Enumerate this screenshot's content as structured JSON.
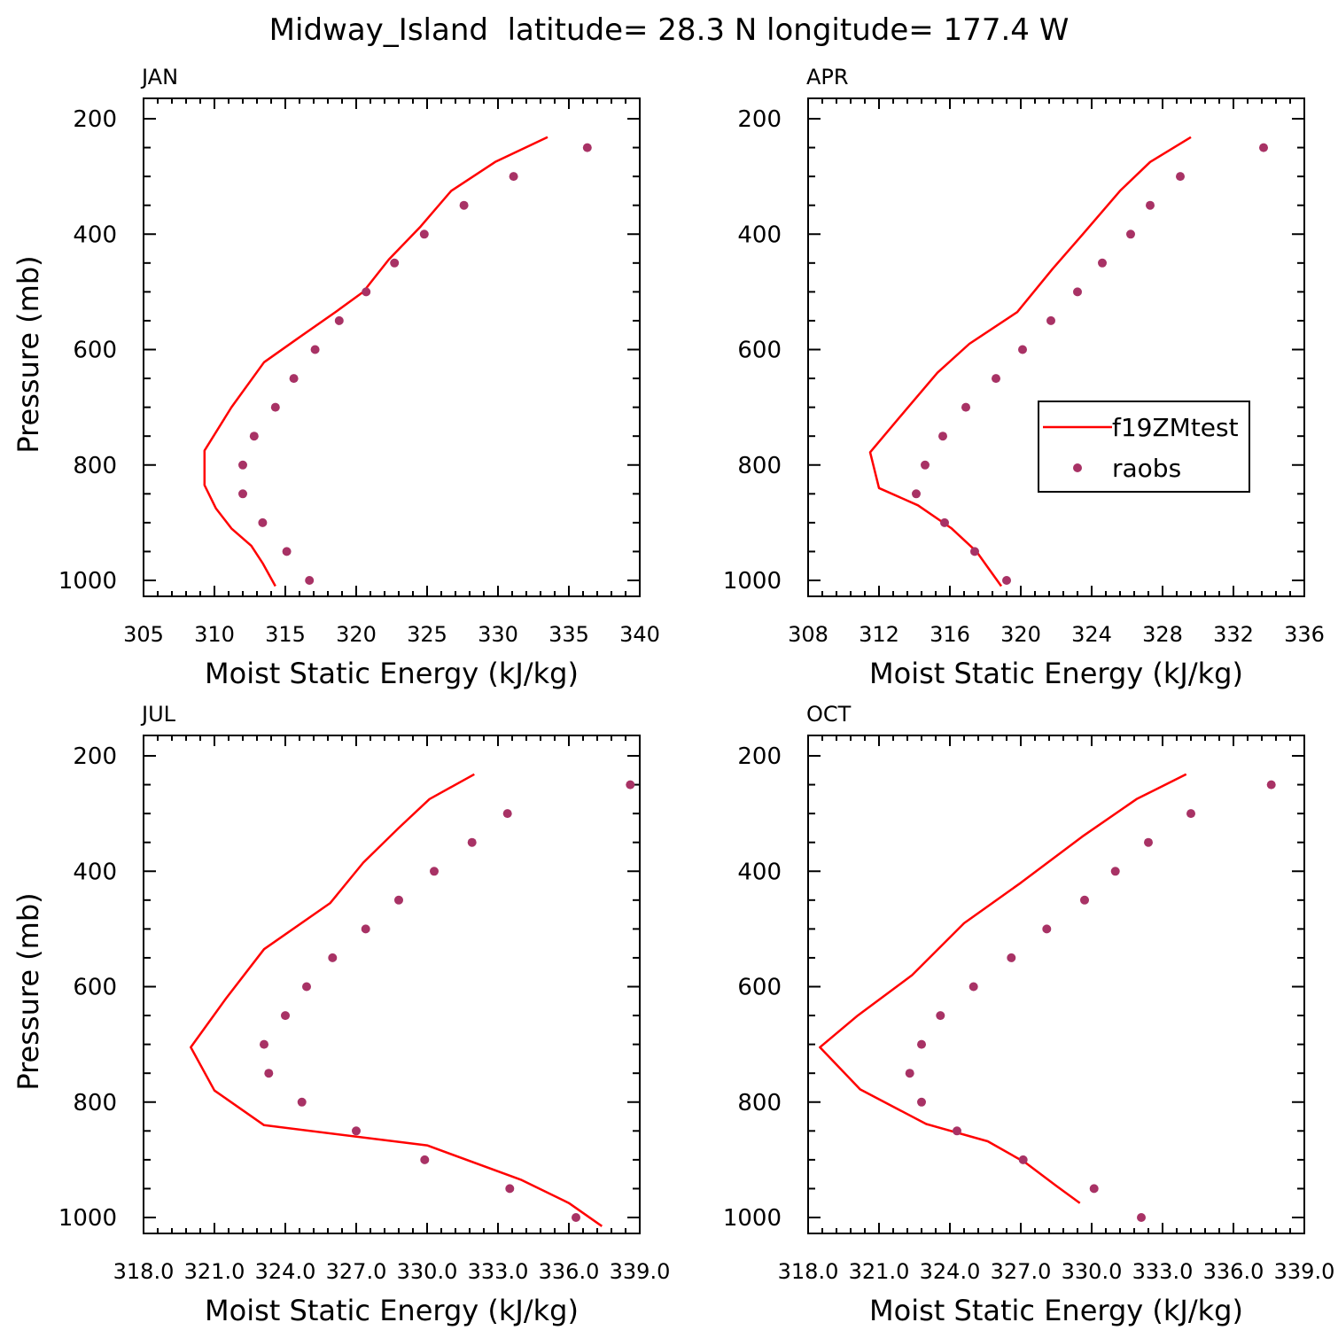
{
  "title": "Midway_Island  latitude= 28.3 N longitude= 177.4 W",
  "colors": {
    "model": "#ff0000",
    "obs": "#a83265",
    "axis": "#000000"
  },
  "legend": {
    "model_label": "f19ZMtest",
    "obs_label": "raobs",
    "panel": "APR"
  },
  "chart_data": [
    {
      "type": "line",
      "panel": "JAN",
      "xlabel": "Moist Static Energy (kJ/kg)",
      "ylabel": "Pressure (mb)",
      "xlim": [
        305,
        340
      ],
      "ylim": [
        200,
        1000
      ],
      "xticks": [
        "305",
        "310",
        "315",
        "320",
        "325",
        "330",
        "335",
        "340"
      ],
      "yticks": [
        "200",
        "400",
        "600",
        "800",
        "1000"
      ],
      "series": [
        {
          "name": "f19ZMtest",
          "style": "line",
          "x": [
            333.5,
            329.8,
            326.7,
            324.5,
            322.3,
            320.5,
            318.6,
            315.8,
            313.5,
            311.2,
            309.3,
            309.3,
            310.1,
            311.2,
            312.6,
            313.4,
            314.3
          ],
          "y": [
            232,
            275,
            325,
            388,
            444,
            500,
            534,
            582,
            622,
            700,
            775,
            835,
            875,
            910,
            940,
            970,
            1010
          ]
        },
        {
          "name": "raobs",
          "style": "marker",
          "x": [
            336.3,
            331.1,
            327.6,
            324.8,
            322.7,
            320.7,
            318.8,
            317.1,
            315.6,
            314.3,
            312.8,
            312.0,
            312.0,
            313.4,
            315.1,
            316.7
          ],
          "y": [
            250,
            300,
            350,
            400,
            450,
            500,
            550,
            600,
            650,
            700,
            750,
            800,
            850,
            900,
            950,
            1000
          ]
        }
      ]
    },
    {
      "type": "line",
      "panel": "APR",
      "xlabel": "Moist Static Energy (kJ/kg)",
      "ylabel": "",
      "xlim": [
        308,
        336
      ],
      "ylim": [
        200,
        1000
      ],
      "xticks": [
        "308",
        "312",
        "316",
        "320",
        "324",
        "328",
        "332",
        "336"
      ],
      "yticks": [
        "200",
        "400",
        "600",
        "800",
        "1000"
      ],
      "series": [
        {
          "name": "f19ZMtest",
          "style": "line",
          "x": [
            329.6,
            327.3,
            325.6,
            323.5,
            321.8,
            319.8,
            317.1,
            315.3,
            313.5,
            311.5,
            312.0,
            314.2,
            316.1,
            317.5,
            318.2,
            318.9
          ],
          "y": [
            232,
            275,
            325,
            400,
            460,
            535,
            590,
            640,
            705,
            778,
            840,
            870,
            910,
            950,
            980,
            1010
          ]
        },
        {
          "name": "raobs",
          "style": "marker",
          "x": [
            333.7,
            329.0,
            327.3,
            326.2,
            324.6,
            323.2,
            321.7,
            320.1,
            318.6,
            316.9,
            315.6,
            314.6,
            314.1,
            315.7,
            317.4,
            319.2
          ],
          "y": [
            250,
            300,
            350,
            400,
            450,
            500,
            550,
            600,
            650,
            700,
            750,
            800,
            850,
            900,
            950,
            1000
          ]
        }
      ]
    },
    {
      "type": "line",
      "panel": "JUL",
      "xlabel": "Moist Static Energy (kJ/kg)",
      "ylabel": "Pressure (mb)",
      "xlim": [
        318.0,
        339.0
      ],
      "ylim": [
        200,
        1000
      ],
      "xticks": [
        "318.0",
        "321.0",
        "324.0",
        "327.0",
        "330.0",
        "333.0",
        "336.0",
        "339.0"
      ],
      "yticks": [
        "200",
        "400",
        "600",
        "800",
        "1000"
      ],
      "series": [
        {
          "name": "f19ZMtest",
          "style": "line",
          "x": [
            332.0,
            330.1,
            328.8,
            327.3,
            325.9,
            323.1,
            321.5,
            320.0,
            321.0,
            323.1,
            330.0,
            334.0,
            336.0,
            337.4
          ],
          "y": [
            232,
            275,
            325,
            385,
            455,
            535,
            620,
            705,
            780,
            840,
            875,
            935,
            975,
            1015
          ]
        },
        {
          "name": "raobs",
          "style": "marker",
          "x": [
            338.6,
            333.4,
            331.9,
            330.3,
            328.8,
            327.4,
            326.0,
            324.9,
            324.0,
            323.1,
            323.3,
            324.7,
            327.0,
            329.9,
            333.5,
            336.3
          ],
          "y": [
            250,
            300,
            350,
            400,
            450,
            500,
            550,
            600,
            650,
            700,
            750,
            800,
            850,
            900,
            950,
            1000
          ]
        }
      ]
    },
    {
      "type": "line",
      "panel": "OCT",
      "xlabel": "Moist Static Energy (kJ/kg)",
      "ylabel": "",
      "xlim": [
        318.0,
        339.0
      ],
      "ylim": [
        200,
        1000
      ],
      "xticks": [
        "318.0",
        "321.0",
        "324.0",
        "327.0",
        "330.0",
        "333.0",
        "336.0",
        "339.0"
      ],
      "yticks": [
        "200",
        "400",
        "600",
        "800",
        "1000"
      ],
      "series": [
        {
          "name": "f19ZMtest",
          "style": "line",
          "x": [
            334.0,
            331.9,
            329.6,
            327.0,
            324.6,
            322.4,
            320.1,
            318.5,
            320.2,
            323.0,
            325.6,
            327.2,
            328.5,
            329.5
          ],
          "y": [
            232,
            275,
            340,
            420,
            490,
            580,
            650,
            705,
            778,
            838,
            868,
            905,
            945,
            975
          ]
        },
        {
          "name": "raobs",
          "style": "marker",
          "x": [
            337.6,
            334.2,
            332.4,
            331.0,
            329.7,
            328.1,
            326.6,
            325.0,
            323.6,
            322.8,
            322.3,
            322.8,
            324.3,
            327.1,
            330.1,
            332.1
          ],
          "y": [
            250,
            300,
            350,
            400,
            450,
            500,
            550,
            600,
            650,
            700,
            750,
            800,
            850,
            900,
            950,
            1000
          ]
        }
      ]
    }
  ]
}
